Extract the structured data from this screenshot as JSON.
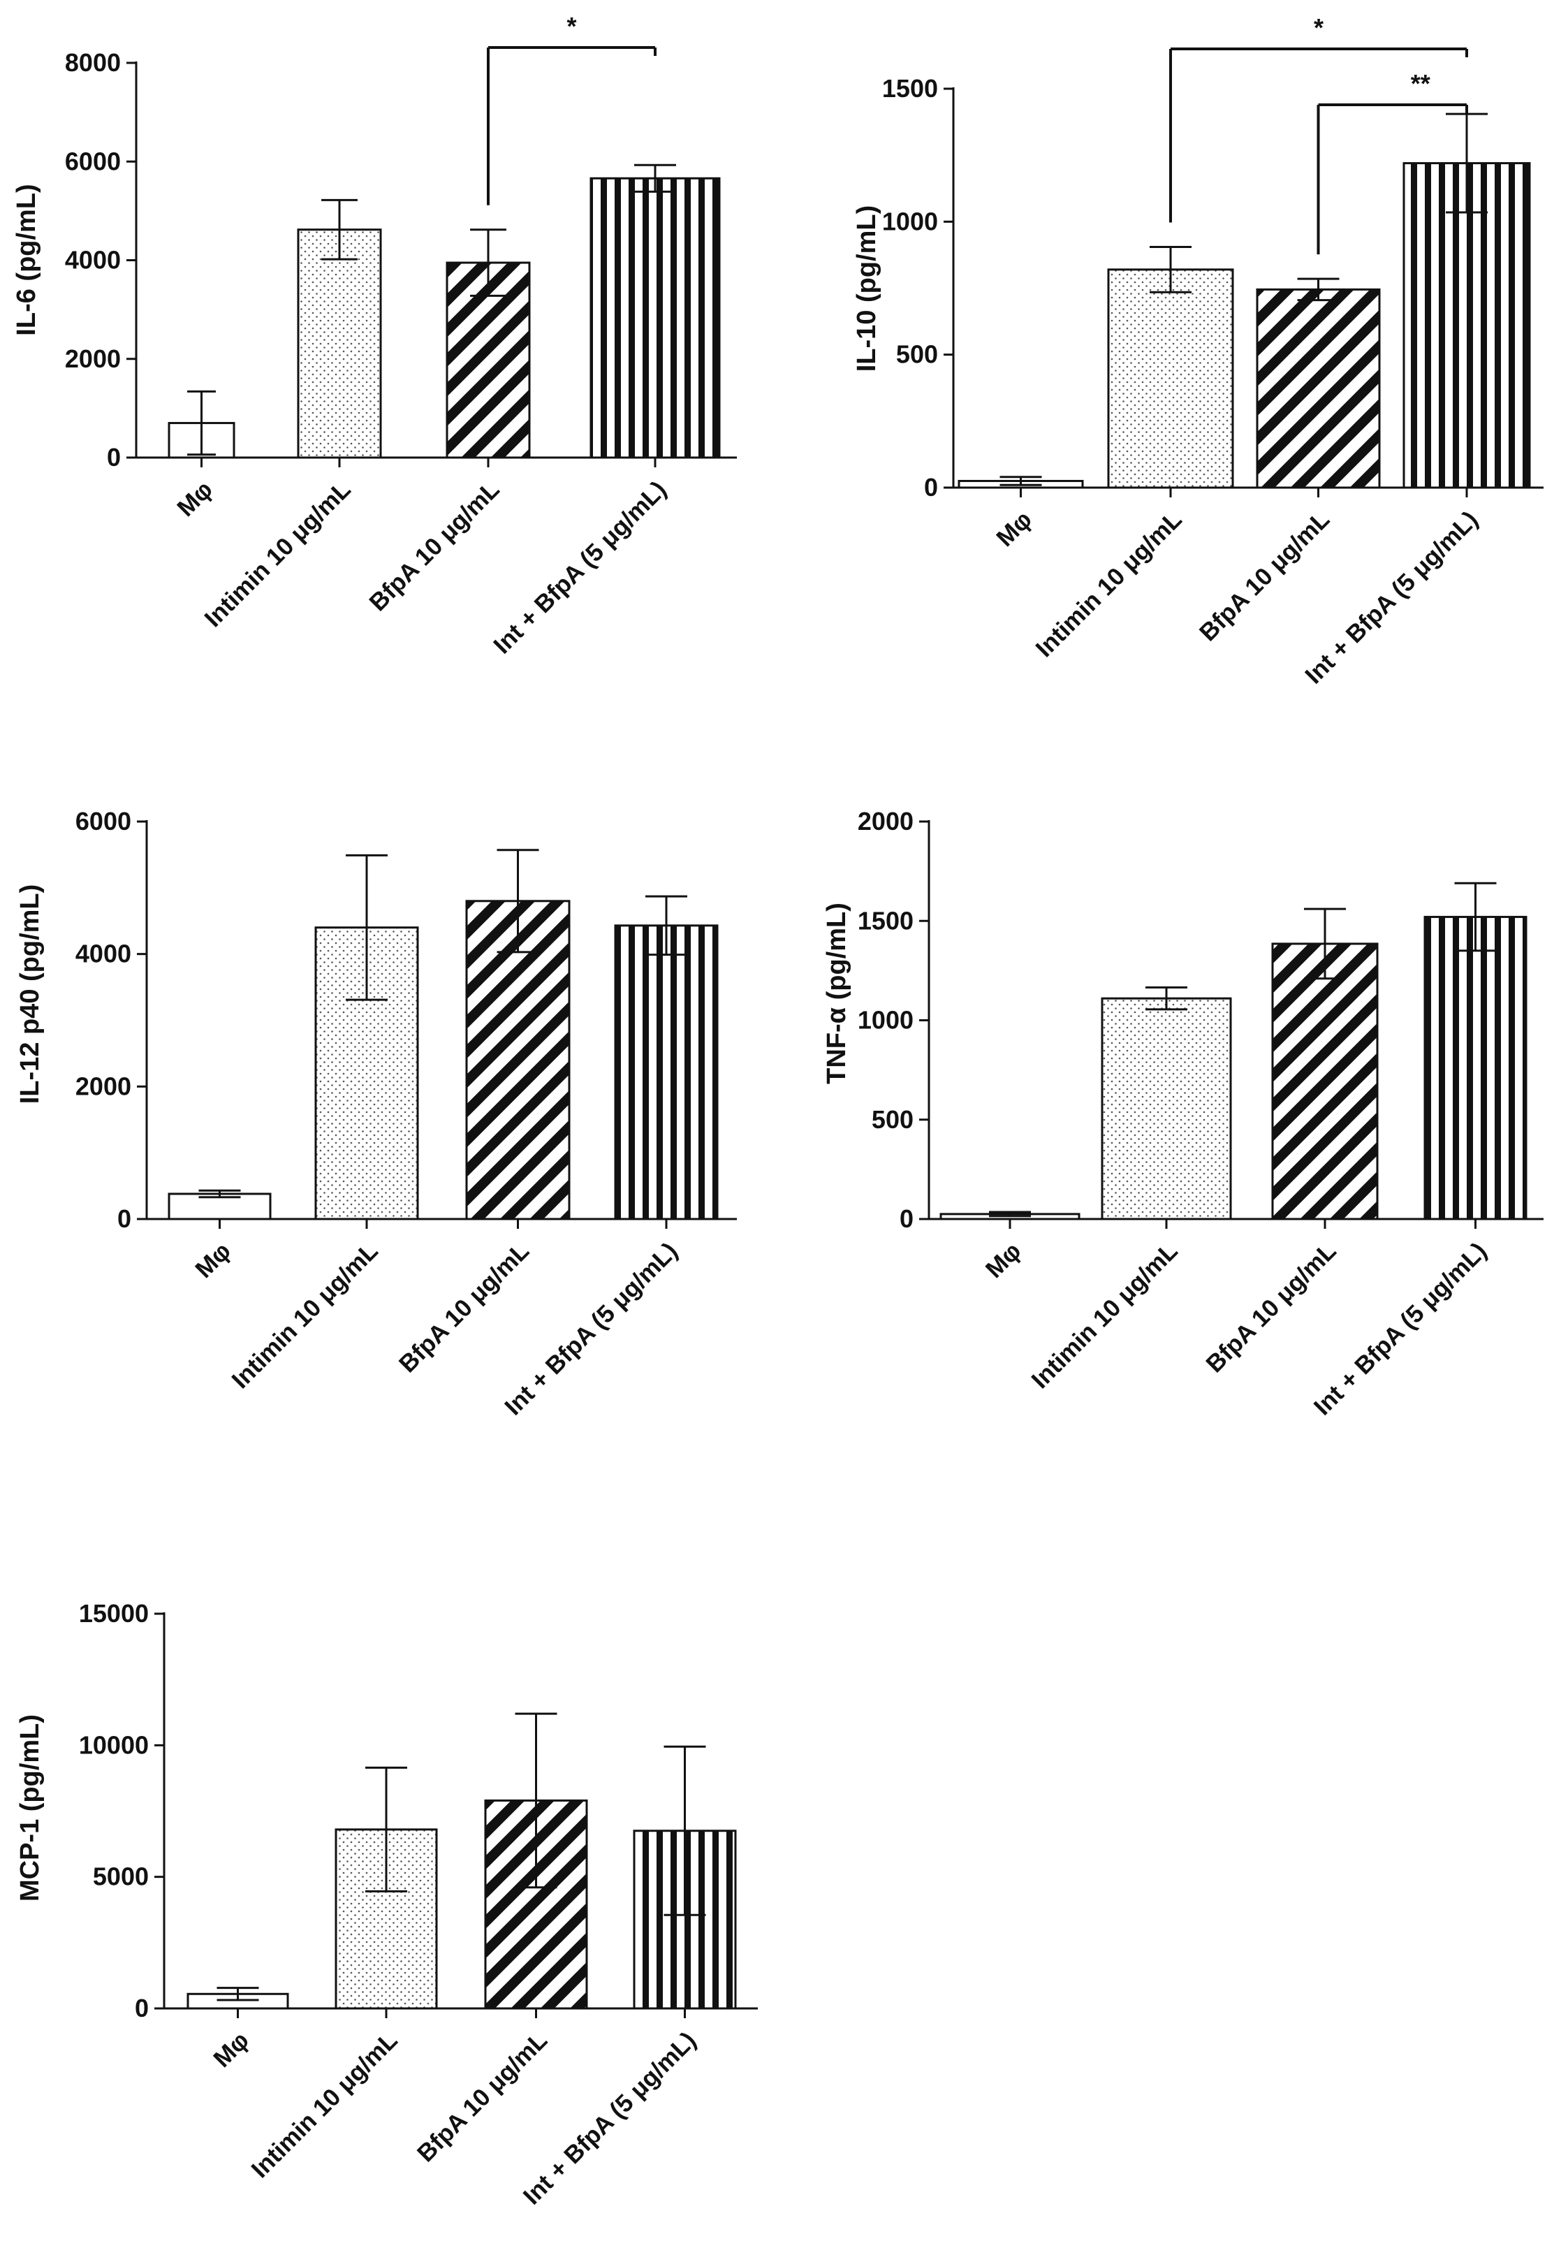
{
  "chart_data": [
    {
      "type": "bar",
      "ylabel": "IL-6 (pg/mL)",
      "ylim": [
        0,
        8000
      ],
      "yticks": [
        0,
        2000,
        4000,
        6000,
        8000
      ],
      "categories": [
        "Mφ",
        "Intimin 10 μg/mL",
        "BfpA 10 μg/mL",
        "Int + BfpA (5 μg/mL)"
      ],
      "values": [
        700,
        4620,
        3950,
        5660
      ],
      "errors": [
        640,
        600,
        670,
        270
      ],
      "significance": [
        {
          "from": 2,
          "to": 3,
          "label": "*"
        }
      ]
    },
    {
      "type": "bar",
      "ylabel": "IL-10 (pg/mL)",
      "ylim": [
        0,
        1500
      ],
      "yticks": [
        0,
        500,
        1000,
        1500
      ],
      "categories": [
        "Mφ",
        "Intimin 10 μg/mL",
        "BfpA 10 μg/mL",
        "Int + BfpA (5 μg/mL)"
      ],
      "values": [
        25,
        820,
        745,
        1220
      ],
      "errors": [
        15,
        85,
        40,
        185
      ],
      "significance": [
        {
          "from": 1,
          "to": 3,
          "label": "*"
        },
        {
          "from": 2,
          "to": 3,
          "label": "**"
        }
      ]
    },
    {
      "type": "bar",
      "ylabel": "IL-12 p40 (pg/mL)",
      "ylim": [
        0,
        6000
      ],
      "yticks": [
        0,
        2000,
        4000,
        6000
      ],
      "categories": [
        "Mφ",
        "Intimin 10 μg/mL",
        "BfpA 10 μg/mL",
        "Int + BfpA (5 μg/mL)"
      ],
      "values": [
        380,
        4400,
        4800,
        4430
      ],
      "errors": [
        50,
        1090,
        770,
        440
      ],
      "significance": []
    },
    {
      "type": "bar",
      "ylabel": "TNF-α (pg/mL)",
      "ylim": [
        0,
        2000
      ],
      "yticks": [
        0,
        500,
        1000,
        1500,
        2000
      ],
      "categories": [
        "Mφ",
        "Intimin 10 μg/mL",
        "BfpA 10 μg/mL",
        "Int + BfpA (5 μg/mL)"
      ],
      "values": [
        25,
        1110,
        1385,
        1520
      ],
      "errors": [
        10,
        55,
        175,
        170
      ],
      "significance": []
    },
    {
      "type": "bar",
      "ylabel": "MCP-1 (pg/mL)",
      "ylim": [
        0,
        15000
      ],
      "yticks": [
        0,
        5000,
        10000,
        15000
      ],
      "categories": [
        "Mφ",
        "Intimin 10 μg/mL",
        "BfpA 10 μg/mL",
        "Int + BfpA (5 μg/mL)"
      ],
      "values": [
        550,
        6800,
        7900,
        6750
      ],
      "errors": [
        230,
        2350,
        3300,
        3200
      ],
      "significance": []
    }
  ]
}
